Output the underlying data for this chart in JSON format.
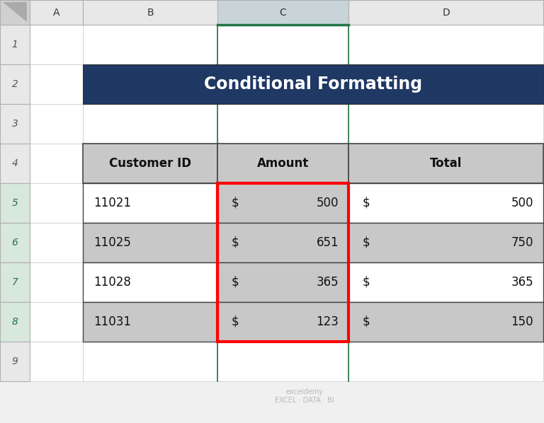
{
  "title": "Conditional Formatting",
  "title_bg": "#1F3864",
  "title_color": "#FFFFFF",
  "headers": [
    "Customer ID",
    "Amount",
    "Total"
  ],
  "rows": [
    [
      "11021",
      "$ 500",
      "$ 500"
    ],
    [
      "11025",
      "$ 651",
      "$ 750"
    ],
    [
      "11028",
      "$ 365",
      "$ 365"
    ],
    [
      "11031",
      "$ 123",
      "$ 150"
    ]
  ],
  "header_bg": "#C8C8C8",
  "row_bg_white": "#FFFFFF",
  "row_bg_gray": "#C8C8C8",
  "amount_col_bg": "#C8C8C8",
  "red_border_color": "#FF0000",
  "col_header_bg_normal": "#E8E8E8",
  "col_header_bg_selected": "#C8D4D8",
  "row_header_bg": "#E8E8E8",
  "bg_color": "#F0F0F0",
  "cell_white": "#FFFFFF",
  "grid_light": "#C8C8C8",
  "grid_dark": "#444444",
  "col_C_border_color": "#217346",
  "row_num_color": "#217346",
  "corner_bg": "#D0D0D0",
  "watermark_text": "exceldemy\nEXCEL · DATA · BI"
}
